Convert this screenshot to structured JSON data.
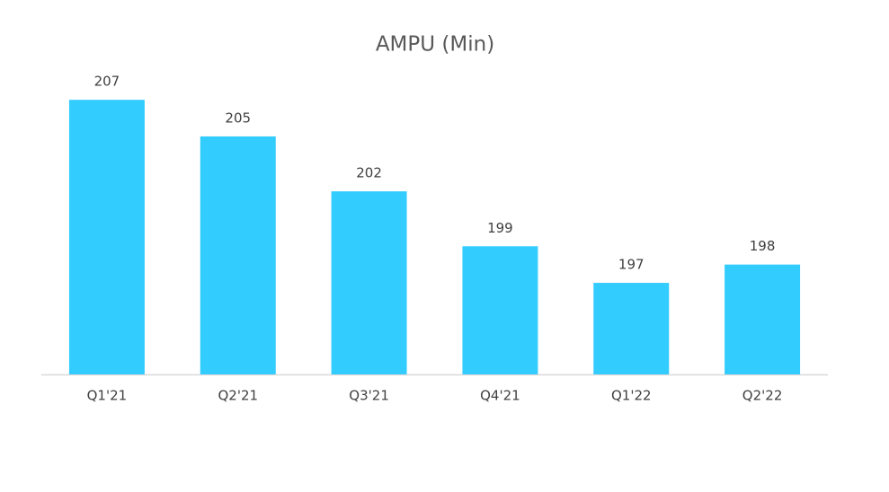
{
  "chart_data": {
    "type": "bar",
    "title": "AMPU (Min)",
    "categories": [
      "Q1'21",
      "Q2'21",
      "Q3'21",
      "Q4'21",
      "Q1'22",
      "Q2'22"
    ],
    "values": [
      207,
      205,
      202,
      199,
      197,
      198
    ],
    "color": "#33ccff",
    "ylim": [
      192,
      210
    ]
  }
}
